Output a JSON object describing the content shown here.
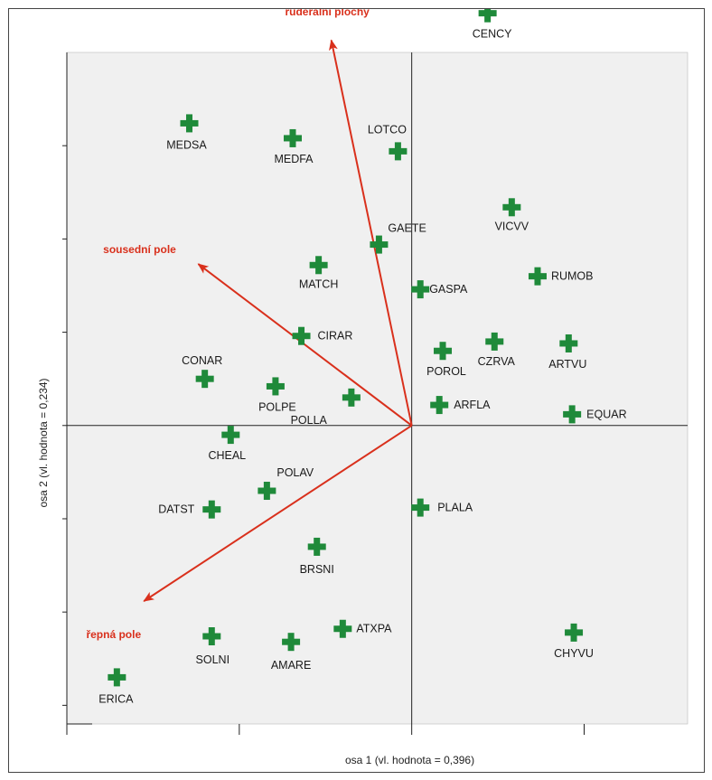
{
  "chart_data": {
    "type": "scatter",
    "subtype": "ordination-biplot",
    "xlabel": "osa 1 (vl. hodnota = 0,396)",
    "ylabel": "osa 2 (vl. hodnota = 0,234)",
    "xlim": [
      -2.0,
      1.6
    ],
    "ylim": [
      -1.6,
      2.0
    ],
    "x_ticks": [
      -2.0,
      -1.0,
      0.0,
      1.0
    ],
    "y_ticks": [
      -1.5,
      -1.0,
      -0.5,
      0.0,
      0.5,
      1.0,
      1.5
    ],
    "grid": false,
    "zero_lines": true,
    "species": [
      {
        "label": "CENCY",
        "x": 0.44,
        "y": 2.21
      },
      {
        "label": "MEDSA",
        "x": -1.29,
        "y": 1.62
      },
      {
        "label": "MEDFA",
        "x": -0.69,
        "y": 1.54
      },
      {
        "label": "LOTCO",
        "x": -0.08,
        "y": 1.47
      },
      {
        "label": "VICVV",
        "x": 0.58,
        "y": 1.17
      },
      {
        "label": "GAETE",
        "x": -0.19,
        "y": 0.97
      },
      {
        "label": "RUMOB",
        "x": 0.73,
        "y": 0.8
      },
      {
        "label": "MATCH",
        "x": -0.54,
        "y": 0.86
      },
      {
        "label": "GASPA",
        "x": 0.05,
        "y": 0.73
      },
      {
        "label": "CIRAR",
        "x": -0.64,
        "y": 0.48
      },
      {
        "label": "CZRVA",
        "x": 0.48,
        "y": 0.45
      },
      {
        "label": "ARTVU",
        "x": 0.91,
        "y": 0.44
      },
      {
        "label": "POROL",
        "x": 0.18,
        "y": 0.4
      },
      {
        "label": "CONAR",
        "x": -1.2,
        "y": 0.25
      },
      {
        "label": "POLPE",
        "x": -0.79,
        "y": 0.21
      },
      {
        "label": "POLLA",
        "x": -0.35,
        "y": 0.15
      },
      {
        "label": "ARFLA",
        "x": 0.16,
        "y": 0.11
      },
      {
        "label": "EQUAR",
        "x": 0.93,
        "y": 0.06
      },
      {
        "label": "CHEAL",
        "x": -1.05,
        "y": -0.05
      },
      {
        "label": "POLAV",
        "x": -0.84,
        "y": -0.35
      },
      {
        "label": "DATST",
        "x": -1.16,
        "y": -0.45
      },
      {
        "label": "PLALA",
        "x": 0.05,
        "y": -0.44
      },
      {
        "label": "BRSNI",
        "x": -0.55,
        "y": -0.65
      },
      {
        "label": "ATXPA",
        "x": -0.4,
        "y": -1.09
      },
      {
        "label": "SOLNI",
        "x": -1.16,
        "y": -1.13
      },
      {
        "label": "AMARE",
        "x": -0.7,
        "y": -1.16
      },
      {
        "label": "CHYVU",
        "x": 0.94,
        "y": -1.11
      },
      {
        "label": "ERICA",
        "x": -1.71,
        "y": -1.35
      }
    ],
    "environmental_vectors": [
      {
        "label": "ruderální plochy",
        "x": -0.49,
        "y": 2.17
      },
      {
        "label": "sousední pole",
        "x": -1.33,
        "y": 0.93
      },
      {
        "label": "řepná pole",
        "x": -1.65,
        "y": -1.0
      }
    ],
    "colors": {
      "species_marker": "#1f8a3a",
      "vectors": "#d9301c",
      "plot_background": "#f0f0f0",
      "axis_lines": "#222222"
    }
  }
}
